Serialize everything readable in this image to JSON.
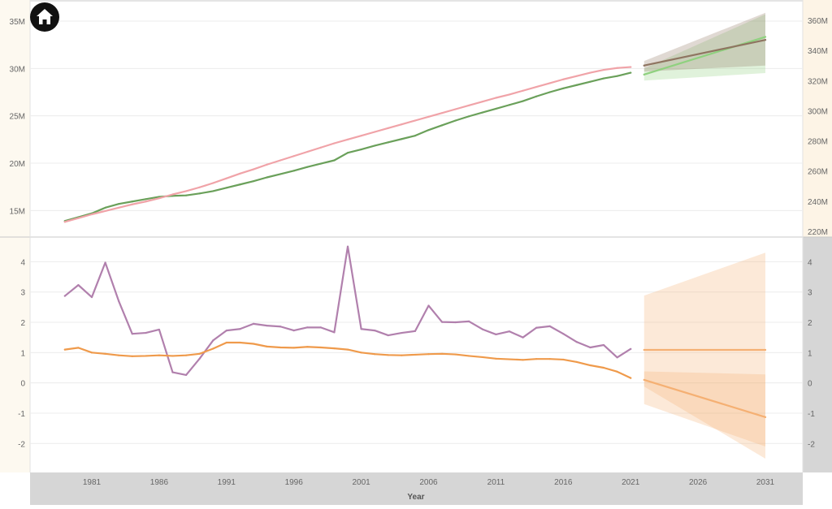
{
  "app": {
    "home_button_icon": "home-icon"
  },
  "colors": {
    "left_axis_band": "#fdf9f0",
    "right_axis_band_top": "#fdf4e6",
    "right_axis_band_bottom": "#d6d6d6",
    "x_axis_band": "#d6d6d6",
    "grid": "#ececec",
    "divider": "#c8c8c8",
    "tick_text": "#666666",
    "home_button": "#111111",
    "green": "#6aa05a",
    "pink": "#f0a3a8",
    "forecast_green": "#8fd17f",
    "forecast_brown": "#8f7561",
    "purple": "#b180ad",
    "orange": "#ef9a4b",
    "forecast_orange": "#f5b073"
  },
  "chart_data": [
    {
      "type": "line",
      "title": "",
      "xlabel": "Year",
      "x_ticks": [
        "1981",
        "1986",
        "1991",
        "1996",
        "2001",
        "2006",
        "2011",
        "2016",
        "2021",
        "2026",
        "2031"
      ],
      "y_left": {
        "ticks": [
          "15M",
          "20M",
          "25M",
          "30M",
          "35M"
        ],
        "range": [
          12.8,
          36.2
        ]
      },
      "y_right": {
        "ticks": [
          "220M",
          "240M",
          "260M",
          "280M",
          "300M",
          "320M",
          "340M",
          "360M"
        ],
        "range": [
          220,
          367
        ]
      },
      "grid": true,
      "series": [
        {
          "key": "green",
          "axis": "left",
          "color_key": "green",
          "x": [
            1979,
            1980,
            1981,
            1982,
            1983,
            1984,
            1985,
            1986,
            1987,
            1988,
            1989,
            1990,
            1991,
            1992,
            1993,
            1994,
            1995,
            1996,
            1997,
            1998,
            1999,
            2000,
            2001,
            2002,
            2003,
            2004,
            2005,
            2006,
            2007,
            2008,
            2009,
            2010,
            2011,
            2012,
            2013,
            2014,
            2015,
            2016,
            2017,
            2018,
            2019,
            2020,
            2021
          ],
          "values": [
            13.9,
            14.3,
            14.7,
            15.3,
            15.7,
            15.95,
            16.2,
            16.45,
            16.55,
            16.6,
            16.8,
            17.05,
            17.4,
            17.75,
            18.1,
            18.5,
            18.85,
            19.2,
            19.6,
            19.95,
            20.3,
            21.1,
            21.45,
            21.85,
            22.2,
            22.55,
            22.9,
            23.5,
            24.0,
            24.5,
            24.95,
            25.35,
            25.75,
            26.15,
            26.55,
            27.05,
            27.5,
            27.9,
            28.25,
            28.6,
            28.95,
            29.2,
            29.55
          ]
        },
        {
          "key": "pink",
          "axis": "left",
          "color_key": "pink",
          "x": [
            1979,
            1980,
            1981,
            1982,
            1983,
            1984,
            1985,
            1986,
            1987,
            1988,
            1989,
            1990,
            1991,
            1992,
            1993,
            1994,
            1995,
            1996,
            1997,
            1998,
            1999,
            2000,
            2001,
            2002,
            2003,
            2004,
            2005,
            2006,
            2007,
            2008,
            2009,
            2010,
            2011,
            2012,
            2013,
            2014,
            2015,
            2016,
            2017,
            2018,
            2019,
            2020,
            2021
          ],
          "values": [
            13.8,
            14.2,
            14.6,
            14.95,
            15.3,
            15.65,
            15.95,
            16.3,
            16.7,
            17.05,
            17.45,
            17.9,
            18.4,
            18.9,
            19.35,
            19.85,
            20.3,
            20.75,
            21.2,
            21.65,
            22.1,
            22.5,
            22.9,
            23.3,
            23.7,
            24.1,
            24.5,
            24.9,
            25.3,
            25.7,
            26.1,
            26.5,
            26.9,
            27.25,
            27.65,
            28.05,
            28.45,
            28.85,
            29.2,
            29.55,
            29.85,
            30.05,
            30.15
          ]
        },
        {
          "key": "forecast_green",
          "axis": "right",
          "color_key": "forecast_green",
          "x": [
            2022,
            2031
          ],
          "values": [
            324,
            349
          ],
          "band_lower": [
            320,
            325
          ],
          "band_upper": [
            328,
            364
          ]
        },
        {
          "key": "forecast_brown",
          "axis": "right",
          "color_key": "forecast_brown",
          "x": [
            2022,
            2031
          ],
          "values": [
            330,
            347
          ],
          "band_lower": [
            326,
            330
          ],
          "band_upper": [
            333,
            365
          ]
        }
      ]
    },
    {
      "type": "line",
      "title": "",
      "xlabel": "Year",
      "x_ticks": [
        "1981",
        "1986",
        "1991",
        "1996",
        "2001",
        "2006",
        "2011",
        "2016",
        "2021",
        "2026",
        "2031"
      ],
      "y_left": {
        "ticks": [
          "-2",
          "-1",
          "0",
          "1",
          "2",
          "3",
          "4"
        ],
        "range": [
          -2.85,
          4.6
        ]
      },
      "y_right": {
        "ticks": [
          "-2",
          "-1",
          "0",
          "1",
          "2",
          "3",
          "4"
        ],
        "range": [
          -2.85,
          4.6
        ]
      },
      "grid": true,
      "series": [
        {
          "key": "purple",
          "axis": "left",
          "color_key": "purple",
          "x": [
            1979,
            1980,
            1981,
            1982,
            1983,
            1984,
            1985,
            1986,
            1987,
            1988,
            1989,
            1990,
            1991,
            1992,
            1993,
            1994,
            1995,
            1996,
            1997,
            1998,
            1999,
            2000,
            2001,
            2002,
            2003,
            2004,
            2005,
            2006,
            2007,
            2008,
            2009,
            2010,
            2011,
            2012,
            2013,
            2014,
            2015,
            2016,
            2017,
            2018,
            2019,
            2020,
            2021
          ],
          "values": [
            2.87,
            3.23,
            2.83,
            3.97,
            2.7,
            1.62,
            1.65,
            1.76,
            0.35,
            0.26,
            0.8,
            1.4,
            1.73,
            1.78,
            1.95,
            1.89,
            1.86,
            1.73,
            1.83,
            1.83,
            1.67,
            4.5,
            1.78,
            1.73,
            1.57,
            1.65,
            1.71,
            2.55,
            2.01,
            2.0,
            2.03,
            1.77,
            1.6,
            1.7,
            1.5,
            1.82,
            1.87,
            1.62,
            1.35,
            1.17,
            1.25,
            0.84,
            1.12
          ]
        },
        {
          "key": "orange",
          "axis": "left",
          "color_key": "orange",
          "x": [
            1979,
            1980,
            1981,
            1982,
            1983,
            1984,
            1985,
            1986,
            1987,
            1988,
            1989,
            1990,
            1991,
            1992,
            1993,
            1994,
            1995,
            1996,
            1997,
            1998,
            1999,
            2000,
            2001,
            2002,
            2003,
            2004,
            2005,
            2006,
            2007,
            2008,
            2009,
            2010,
            2011,
            2012,
            2013,
            2014,
            2015,
            2016,
            2017,
            2018,
            2019,
            2020,
            2021
          ],
          "values": [
            1.1,
            1.16,
            1.0,
            0.96,
            0.91,
            0.88,
            0.89,
            0.91,
            0.89,
            0.91,
            0.96,
            1.13,
            1.33,
            1.33,
            1.29,
            1.2,
            1.17,
            1.16,
            1.19,
            1.17,
            1.14,
            1.1,
            1.0,
            0.95,
            0.92,
            0.91,
            0.93,
            0.95,
            0.96,
            0.94,
            0.89,
            0.85,
            0.8,
            0.78,
            0.76,
            0.79,
            0.79,
            0.77,
            0.69,
            0.58,
            0.5,
            0.37,
            0.16
          ]
        },
        {
          "key": "forecast_flat",
          "axis": "left",
          "color_key": "forecast_orange",
          "x": [
            2022,
            2031
          ],
          "values": [
            1.09,
            1.09
          ],
          "band_lower": [
            -0.7,
            -2.1
          ],
          "band_upper": [
            2.88,
            4.3
          ]
        },
        {
          "key": "forecast_decline",
          "axis": "left",
          "color_key": "forecast_orange",
          "x": [
            2022,
            2031
          ],
          "values": [
            0.1,
            -1.13
          ],
          "band_lower": [
            -0.12,
            -2.5
          ],
          "band_upper": [
            0.38,
            0.28
          ]
        }
      ]
    }
  ]
}
